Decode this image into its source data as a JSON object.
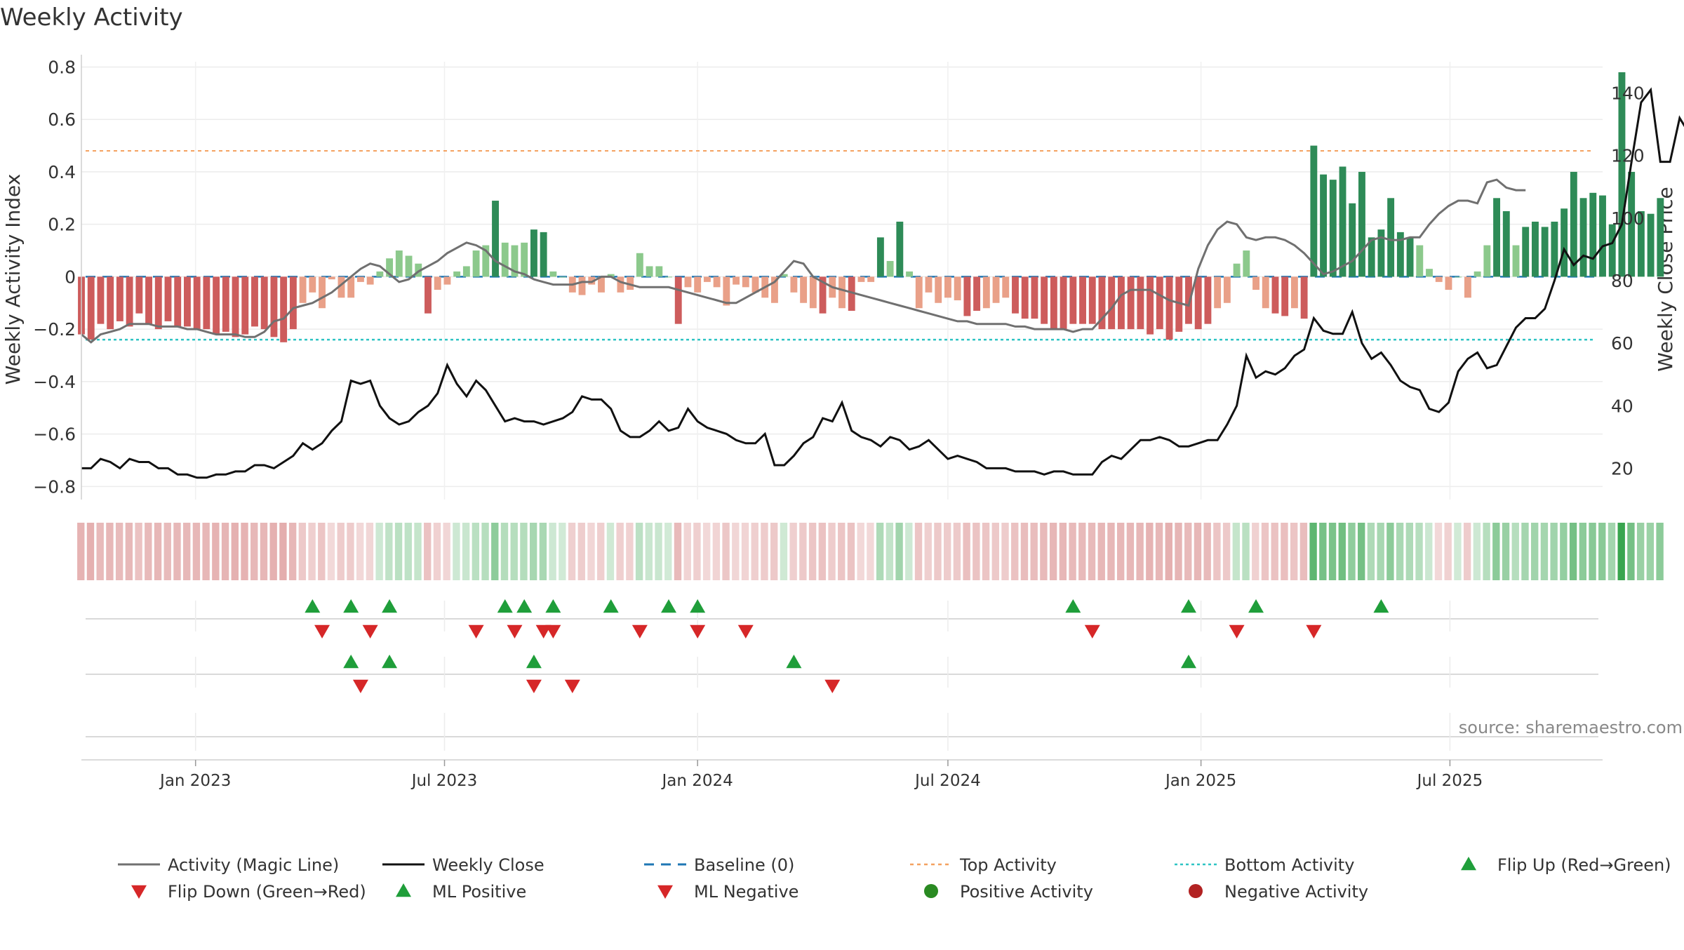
{
  "chart_data": {
    "type": "bar",
    "title": "Weekly Activity",
    "ylabel_left": "Weekly Activity Index",
    "ylabel_right": "Weekly Close Price",
    "source": "source: sharemaestro.com",
    "ylim_left": [
      -0.85,
      0.82
    ],
    "ylim_right": [
      10,
      150
    ],
    "yticks_left": [
      "0.8",
      "0.6",
      "0.4",
      "0.2",
      "0",
      "−0.2",
      "−0.4",
      "−0.6",
      "−0.8"
    ],
    "ytick_values_left": [
      0.8,
      0.6,
      0.4,
      0.2,
      0,
      -0.2,
      -0.4,
      -0.6,
      -0.8
    ],
    "yticks_right": [
      "140",
      "120",
      "100",
      "80",
      "60",
      "40",
      "20"
    ],
    "ytick_values_right": [
      140,
      120,
      100,
      80,
      60,
      40,
      20
    ],
    "x_date_range": [
      "2022-10-10",
      "2025-10-20"
    ],
    "xticks": [
      {
        "label": "Jan 2023",
        "date": "2023-01-01"
      },
      {
        "label": "Jul 2023",
        "date": "2023-07-01"
      },
      {
        "label": "Jan 2024",
        "date": "2024-01-01"
      },
      {
        "label": "Jul 2024",
        "date": "2024-07-01"
      },
      {
        "label": "Jan 2025",
        "date": "2025-01-01"
      },
      {
        "label": "Jul 2025",
        "date": "2025-07-01"
      }
    ],
    "top_activity": 0.48,
    "bottom_activity": -0.24,
    "weeks_start": "2022-10-10",
    "activity": [
      -0.22,
      -0.24,
      -0.18,
      -0.2,
      -0.17,
      -0.19,
      -0.14,
      -0.18,
      -0.2,
      -0.17,
      -0.19,
      -0.19,
      -0.2,
      -0.2,
      -0.22,
      -0.21,
      -0.23,
      -0.22,
      -0.19,
      -0.2,
      -0.23,
      -0.25,
      -0.2,
      -0.1,
      -0.06,
      -0.12,
      -0.01,
      -0.08,
      -0.08,
      -0.02,
      -0.03,
      0.02,
      0.07,
      0.1,
      0.08,
      0.05,
      -0.14,
      -0.05,
      -0.03,
      0.02,
      0.04,
      0.1,
      0.12,
      0.29,
      0.13,
      0.12,
      0.13,
      0.18,
      0.17,
      0.02,
      0.0,
      -0.06,
      -0.07,
      -0.03,
      -0.06,
      0.01,
      -0.06,
      -0.05,
      0.09,
      0.04,
      0.04,
      0.0,
      -0.18,
      -0.04,
      -0.06,
      -0.02,
      -0.04,
      -0.11,
      -0.03,
      -0.04,
      -0.06,
      -0.08,
      -0.1,
      0.01,
      -0.06,
      -0.1,
      -0.12,
      -0.14,
      -0.08,
      -0.12,
      -0.13,
      -0.02,
      -0.02,
      0.15,
      0.06,
      0.21,
      0.02,
      -0.12,
      -0.06,
      -0.1,
      -0.08,
      -0.09,
      -0.15,
      -0.13,
      -0.12,
      -0.1,
      -0.08,
      -0.14,
      -0.16,
      -0.16,
      -0.18,
      -0.2,
      -0.2,
      -0.18,
      -0.18,
      -0.18,
      -0.2,
      -0.2,
      -0.2,
      -0.2,
      -0.2,
      -0.22,
      -0.2,
      -0.24,
      -0.21,
      -0.18,
      -0.2,
      -0.18,
      -0.12,
      -0.1,
      0.05,
      0.1,
      -0.05,
      -0.12,
      -0.14,
      -0.15,
      -0.12,
      -0.16,
      0.5,
      0.39,
      0.37,
      0.42,
      0.28,
      0.4,
      0.15,
      0.18,
      0.3,
      0.17,
      0.15,
      0.12,
      0.03,
      -0.02,
      -0.05,
      0.0,
      -0.08,
      0.02,
      0.12,
      0.3,
      0.25,
      0.12,
      0.19,
      0.21,
      0.19,
      0.21,
      0.26,
      0.4,
      0.3,
      0.32,
      0.31,
      0.2,
      0.78,
      0.4,
      0.25,
      0.24,
      0.3
    ],
    "magic_line": [
      -0.22,
      -0.25,
      -0.22,
      -0.21,
      -0.2,
      -0.18,
      -0.18,
      -0.18,
      -0.19,
      -0.19,
      -0.19,
      -0.2,
      -0.2,
      -0.21,
      -0.22,
      -0.22,
      -0.22,
      -0.23,
      -0.23,
      -0.21,
      -0.17,
      -0.16,
      -0.12,
      -0.11,
      -0.1,
      -0.08,
      -0.06,
      -0.03,
      0.0,
      0.03,
      0.05,
      0.04,
      0.01,
      -0.02,
      -0.01,
      0.02,
      0.04,
      0.06,
      0.09,
      0.11,
      0.13,
      0.12,
      0.1,
      0.06,
      0.04,
      0.02,
      0.01,
      -0.01,
      -0.02,
      -0.03,
      -0.03,
      -0.03,
      -0.02,
      -0.02,
      0.0,
      0.0,
      -0.02,
      -0.03,
      -0.04,
      -0.04,
      -0.04,
      -0.04,
      -0.05,
      -0.06,
      -0.07,
      -0.08,
      -0.09,
      -0.1,
      -0.1,
      -0.08,
      -0.06,
      -0.04,
      -0.02,
      0.02,
      0.06,
      0.05,
      0.0,
      -0.02,
      -0.04,
      -0.05,
      -0.06,
      -0.07,
      -0.08,
      -0.09,
      -0.1,
      -0.11,
      -0.12,
      -0.13,
      -0.14,
      -0.15,
      -0.16,
      -0.17,
      -0.17,
      -0.18,
      -0.18,
      -0.18,
      -0.18,
      -0.19,
      -0.19,
      -0.2,
      -0.2,
      -0.2,
      -0.2,
      -0.21,
      -0.2,
      -0.2,
      -0.16,
      -0.12,
      -0.07,
      -0.05,
      -0.05,
      -0.05,
      -0.07,
      -0.09,
      -0.1,
      -0.11,
      0.03,
      0.12,
      0.18,
      0.21,
      0.2,
      0.15,
      0.14,
      0.15,
      0.15,
      0.14,
      0.12,
      0.09,
      0.05,
      0.01,
      0.02,
      0.04,
      0.06,
      0.1,
      0.14,
      0.15,
      0.14,
      0.14,
      0.15,
      0.15,
      0.2,
      0.24,
      0.27,
      0.29,
      0.29,
      0.28,
      0.36,
      0.37,
      0.34,
      0.33,
      0.33
    ],
    "weekly_close": [
      20,
      20,
      23,
      22,
      20,
      23,
      22,
      22,
      20,
      20,
      18,
      18,
      17,
      17,
      18,
      18,
      19,
      19,
      21,
      21,
      20,
      22,
      24,
      28,
      26,
      28,
      32,
      35,
      48,
      47,
      48,
      40,
      36,
      34,
      35,
      38,
      40,
      44,
      53,
      47,
      43,
      48,
      45,
      40,
      35,
      36,
      35,
      35,
      34,
      35,
      36,
      38,
      43,
      42,
      42,
      39,
      32,
      30,
      30,
      32,
      35,
      32,
      33,
      39,
      35,
      33,
      32,
      31,
      29,
      28,
      28,
      31,
      21,
      21,
      24,
      28,
      30,
      36,
      35,
      41,
      32,
      30,
      29,
      27,
      30,
      29,
      26,
      27,
      29,
      26,
      23,
      24,
      23,
      22,
      20,
      20,
      20,
      19,
      19,
      19,
      18,
      19,
      19,
      18,
      18,
      18,
      22,
      24,
      23,
      26,
      29,
      29,
      30,
      29,
      27,
      27,
      28,
      29,
      29,
      34,
      40,
      56,
      49,
      51,
      50,
      52,
      56,
      58,
      68,
      64,
      63,
      63,
      70,
      60,
      55,
      57,
      53,
      48,
      46,
      45,
      39,
      38,
      41,
      51,
      55,
      57,
      52,
      53,
      59,
      65,
      68,
      68,
      71,
      80,
      90,
      85,
      88,
      87,
      91,
      92,
      98,
      118,
      137,
      141,
      118,
      118,
      132,
      127
    ],
    "gradient_strip_intensity": "derived from activity",
    "ml_positive_dates": [
      "2023-04-24",
      "2023-05-22",
      "2023-09-04",
      "2024-03-11",
      "2024-12-23"
    ],
    "ml_negative_dates": [
      "2023-05-01",
      "2023-09-04",
      "2023-10-02",
      "2024-04-08"
    ],
    "flip_up_dates": [
      "2023-03-27",
      "2023-04-24",
      "2023-05-22",
      "2023-08-14",
      "2023-08-28",
      "2023-09-18",
      "2023-10-30",
      "2023-12-11",
      "2024-01-01",
      "2024-09-30",
      "2024-12-23",
      "2025-02-10",
      "2025-05-12"
    ],
    "flip_down_dates": [
      "2023-04-03",
      "2023-05-08",
      "2023-07-24",
      "2023-08-21",
      "2023-09-11",
      "2023-09-18",
      "2023-11-20",
      "2024-01-01",
      "2024-02-05",
      "2024-10-14",
      "2025-01-27",
      "2025-03-24"
    ],
    "legend": [
      {
        "label": "Activity (Magic Line)"
      },
      {
        "label": "Weekly Close"
      },
      {
        "label": "Baseline (0)"
      },
      {
        "label": "Top Activity"
      },
      {
        "label": "Bottom Activity"
      },
      {
        "label": "Flip Up (Red→Green)"
      },
      {
        "label": "Flip Down (Green→Red)"
      },
      {
        "label": "ML Positive"
      },
      {
        "label": "ML Negative"
      },
      {
        "label": "Positive Activity"
      },
      {
        "label": "Negative Activity"
      }
    ]
  },
  "colors": {
    "pos_strong": "#2e8b57",
    "pos_light": "#8cc98c",
    "neg_strong": "#cd5c5c",
    "neg_light": "#e9a088",
    "magic_line": "#707070",
    "close_line": "#111111",
    "baseline": "#1f77b4",
    "top": "#f4a261",
    "bottom": "#2ec4c4",
    "up_marker": "#1f9e3a",
    "down_marker": "#d62728",
    "pos_dot": "#2a8a22",
    "neg_dot": "#b22222"
  }
}
